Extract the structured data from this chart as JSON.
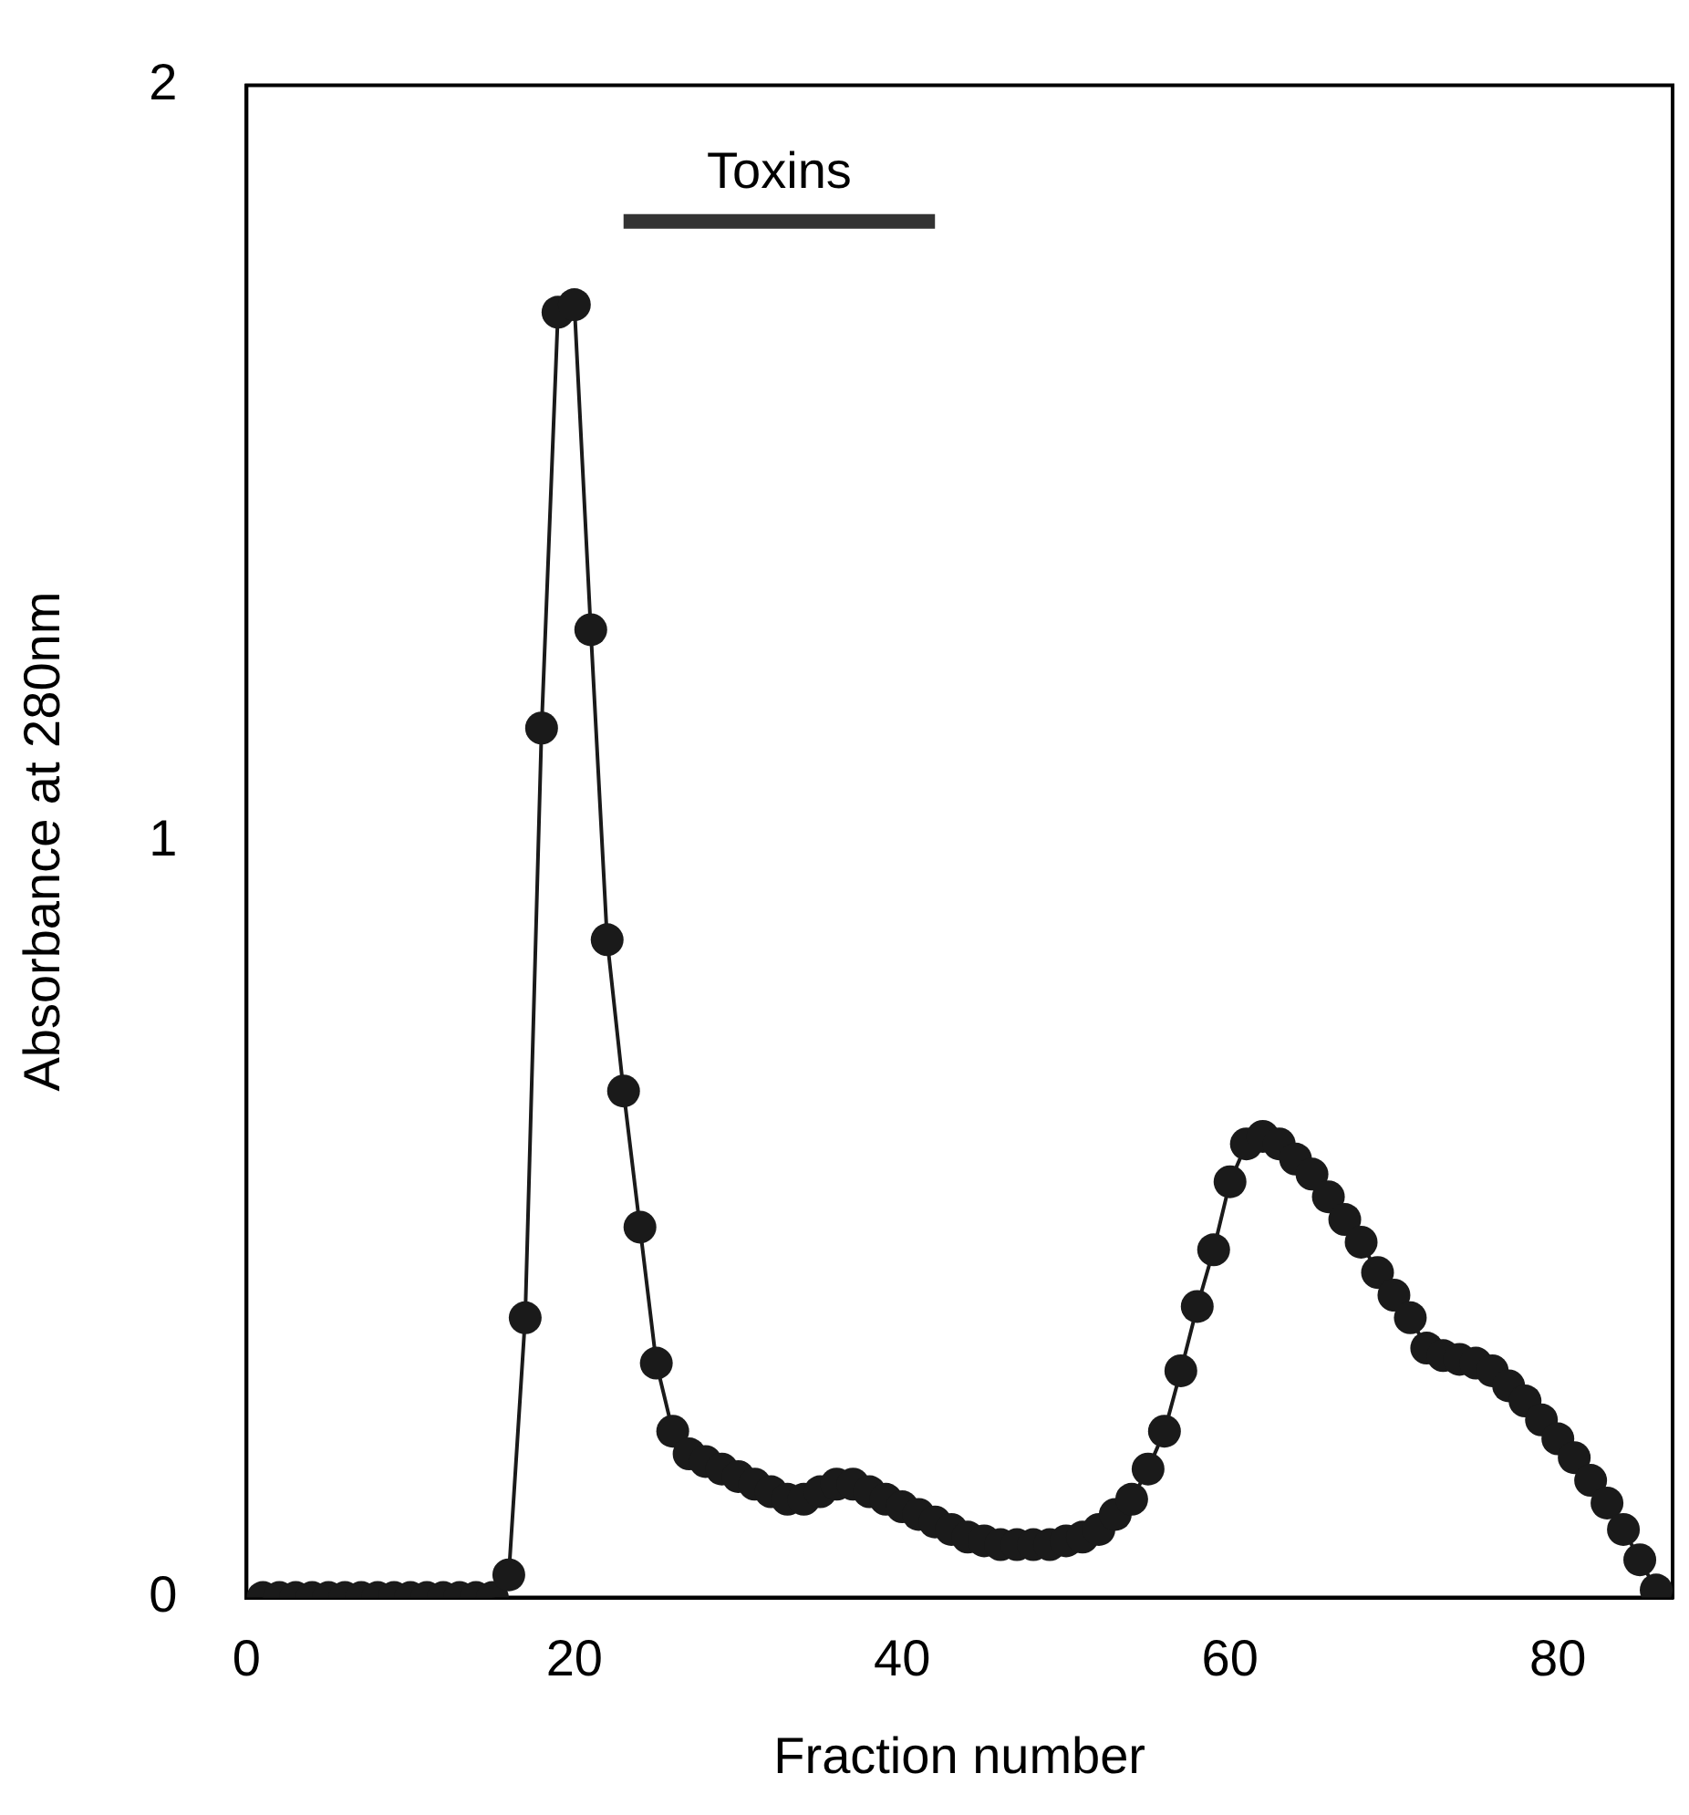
{
  "chart_data": {
    "type": "line",
    "xlabel": "Fraction number",
    "ylabel": "Absorbance at 280nm",
    "x": [
      1,
      2,
      3,
      4,
      5,
      6,
      7,
      8,
      9,
      10,
      11,
      12,
      13,
      14,
      15,
      16,
      17,
      18,
      19,
      20,
      21,
      22,
      23,
      24,
      25,
      26,
      27,
      28,
      29,
      30,
      31,
      32,
      33,
      34,
      35,
      36,
      37,
      38,
      39,
      40,
      41,
      42,
      43,
      44,
      45,
      46,
      47,
      48,
      49,
      50,
      51,
      52,
      53,
      54,
      55,
      56,
      57,
      58,
      59,
      60,
      61,
      62,
      63,
      64,
      65,
      66,
      67,
      68,
      69,
      70,
      71,
      72,
      73,
      74,
      75,
      76,
      77,
      78,
      79,
      80,
      81,
      82,
      83,
      84,
      85,
      86
    ],
    "series": [
      {
        "color": "#1a1a1a",
        "values": [
          0,
          0,
          0,
          0,
          0,
          0,
          0,
          0,
          0,
          0,
          0,
          0,
          0,
          0,
          0,
          0.03,
          0.37,
          1.15,
          1.7,
          1.71,
          1.28,
          0.87,
          0.67,
          0.49,
          0.31,
          0.22,
          0.19,
          0.18,
          0.17,
          0.16,
          0.15,
          0.14,
          0.13,
          0.13,
          0.14,
          0.15,
          0.15,
          0.14,
          0.13,
          0.12,
          0.11,
          0.1,
          0.09,
          0.08,
          0.075,
          0.07,
          0.07,
          0.07,
          0.07,
          0.075,
          0.08,
          0.09,
          0.11,
          0.13,
          0.17,
          0.22,
          0.3,
          0.385,
          0.46,
          0.55,
          0.6,
          0.61,
          0.6,
          0.58,
          0.56,
          0.53,
          0.5,
          0.47,
          0.43,
          0.4,
          0.37,
          0.33,
          0.32,
          0.315,
          0.31,
          0.3,
          0.28,
          0.26,
          0.235,
          0.21,
          0.185,
          0.155,
          0.125,
          0.09,
          0.05,
          0.01
        ]
      },
      {
        "name": "Toxins",
        "color": "#333333",
        "marker": "none",
        "x": [
          23,
          42
        ],
        "values": [
          1.82,
          1.82
        ]
      }
    ],
    "xlim": [
      0,
      87
    ],
    "xticks": [
      0,
      20,
      40,
      60,
      80
    ],
    "ylim": [
      0,
      2
    ],
    "yticks": [
      0,
      1,
      2
    ],
    "marker": "circle",
    "grid": false,
    "legend": false
  }
}
